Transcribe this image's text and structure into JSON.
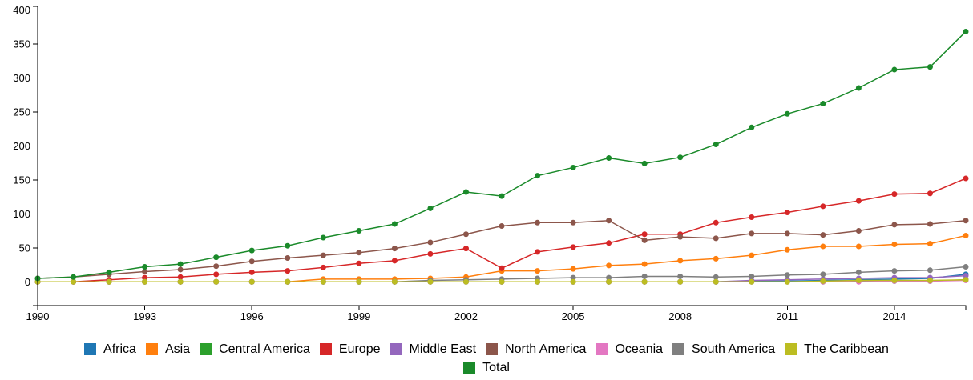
{
  "chart_data": {
    "type": "line",
    "x": [
      1990,
      1991,
      1992,
      1993,
      1994,
      1995,
      1996,
      1997,
      1998,
      1999,
      2000,
      2001,
      2002,
      2003,
      2004,
      2005,
      2006,
      2007,
      2008,
      2009,
      2010,
      2011,
      2012,
      2013,
      2014,
      2015,
      2016
    ],
    "xticks": [
      "1990",
      "1993",
      "1996",
      "1999",
      "2002",
      "2005",
      "2008",
      "2011",
      "2014"
    ],
    "yticks": [
      "0",
      "50",
      "100",
      "150",
      "200",
      "250",
      "300",
      "350",
      "400"
    ],
    "ylim": [
      -35,
      405
    ],
    "xlim": [
      1990,
      2016
    ],
    "grid": false,
    "legend_position": "bottom",
    "series": [
      {
        "name": "Africa",
        "color": "#1f77b4",
        "values": [
          0,
          0,
          0,
          0,
          0,
          0,
          0,
          0,
          0,
          0,
          0,
          0,
          0,
          0,
          0,
          0,
          0,
          0,
          0,
          0,
          1,
          1,
          2,
          3,
          4,
          5,
          11
        ]
      },
      {
        "name": "Asia",
        "color": "#ff7f0e",
        "values": [
          0,
          0,
          0,
          0,
          0,
          0,
          0,
          0,
          4,
          4,
          4,
          5,
          7,
          16,
          16,
          19,
          24,
          26,
          31,
          34,
          39,
          47,
          52,
          52,
          55,
          56,
          68
        ]
      },
      {
        "name": "Central America",
        "color": "#2ca02c",
        "values": [
          0,
          0,
          0,
          0,
          0,
          0,
          0,
          0,
          0,
          0,
          0,
          0,
          0,
          0,
          0,
          0,
          0,
          0,
          0,
          0,
          0,
          0,
          0,
          1,
          1,
          1,
          3
        ]
      },
      {
        "name": "Europe",
        "color": "#d62728",
        "values": [
          0,
          0,
          3,
          6,
          7,
          11,
          14,
          16,
          21,
          27,
          31,
          41,
          49,
          20,
          44,
          51,
          57,
          70,
          70,
          87,
          95,
          102,
          111,
          119,
          129,
          130,
          152
        ]
      },
      {
        "name": "Middle East",
        "color": "#9467bd",
        "values": [
          0,
          0,
          0,
          0,
          0,
          0,
          0,
          0,
          0,
          0,
          0,
          0,
          0,
          0,
          0,
          0,
          0,
          0,
          0,
          0,
          2,
          3,
          4,
          5,
          6,
          6,
          9
        ]
      },
      {
        "name": "North America",
        "color": "#8c564b",
        "values": [
          5,
          7,
          11,
          15,
          18,
          23,
          30,
          35,
          39,
          43,
          49,
          58,
          70,
          82,
          87,
          87,
          90,
          61,
          66,
          64,
          71,
          71,
          69,
          75,
          84,
          85,
          90
        ]
      },
      {
        "name": "Oceania",
        "color": "#e377c2",
        "values": [
          0,
          0,
          0,
          0,
          0,
          0,
          0,
          0,
          0,
          0,
          0,
          0,
          0,
          0,
          0,
          0,
          0,
          0,
          0,
          0,
          0,
          0,
          0,
          0,
          1,
          1,
          2
        ]
      },
      {
        "name": "South America",
        "color": "#7f7f7f",
        "values": [
          0,
          0,
          0,
          0,
          0,
          0,
          0,
          0,
          0,
          0,
          0,
          2,
          3,
          4,
          5,
          6,
          6,
          8,
          8,
          7,
          8,
          10,
          11,
          14,
          16,
          17,
          22
        ]
      },
      {
        "name": "The Caribbean",
        "color": "#bcbd22",
        "values": [
          0,
          0,
          0,
          0,
          0,
          0,
          0,
          0,
          0,
          0,
          0,
          0,
          0,
          0,
          0,
          0,
          0,
          0,
          0,
          0,
          0,
          0,
          1,
          2,
          2,
          2,
          3
        ]
      },
      {
        "name": "Total",
        "color": "#1a8a2a",
        "values": [
          5,
          7,
          14,
          22,
          26,
          36,
          46,
          53,
          65,
          75,
          85,
          108,
          132,
          126,
          156,
          168,
          182,
          174,
          183,
          202,
          227,
          247,
          262,
          285,
          312,
          316,
          368
        ]
      }
    ]
  }
}
